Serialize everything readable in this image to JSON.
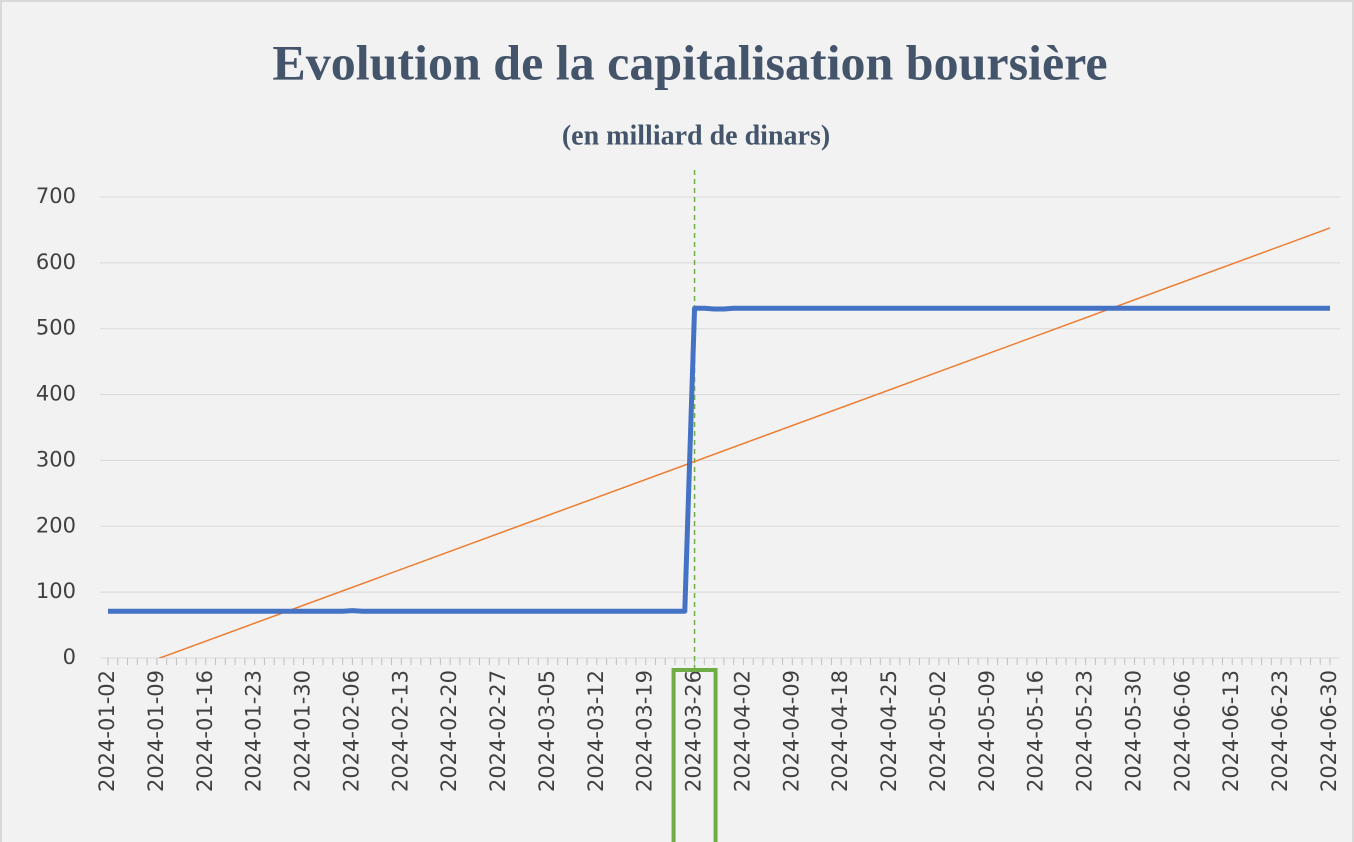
{
  "chart_data": {
    "type": "line",
    "title": "Evolution de la capitalisation boursière",
    "subtitle": "(en milliard de dinars)",
    "categories": [
      "2024-01-02",
      null,
      null,
      null,
      null,
      "2024-01-09",
      null,
      null,
      null,
      null,
      "2024-01-16",
      null,
      null,
      null,
      null,
      "2024-01-23",
      null,
      null,
      null,
      null,
      "2024-01-30",
      null,
      null,
      null,
      null,
      "2024-02-06",
      null,
      null,
      null,
      null,
      "2024-02-13",
      null,
      null,
      null,
      null,
      "2024-02-20",
      null,
      null,
      null,
      null,
      "2024-02-27",
      null,
      null,
      null,
      null,
      "2024-03-05",
      null,
      null,
      null,
      null,
      "2024-03-12",
      null,
      null,
      null,
      null,
      "2024-03-19",
      null,
      null,
      null,
      null,
      "2024-03-26",
      null,
      null,
      null,
      null,
      "2024-04-02",
      null,
      null,
      null,
      null,
      "2024-04-09",
      null,
      null,
      null,
      null,
      "2024-04-18",
      null,
      null,
      null,
      null,
      "2024-04-25",
      null,
      null,
      null,
      null,
      "2024-05-02",
      null,
      null,
      null,
      null,
      "2024-05-09",
      null,
      null,
      null,
      null,
      "2024-05-16",
      null,
      null,
      null,
      null,
      "2024-05-23",
      null,
      null,
      null,
      null,
      "2024-05-30",
      null,
      null,
      null,
      null,
      "2024-06-06",
      null,
      null,
      null,
      null,
      "2024-06-13",
      null,
      null,
      null,
      null,
      "2024-06-23",
      null,
      null,
      null,
      null,
      "2024-06-30"
    ],
    "series": [
      {
        "color": "#4472c4",
        "values": [
          71,
          71,
          71,
          71,
          71,
          71,
          71,
          71,
          71,
          71,
          71,
          71,
          71,
          71,
          71,
          71,
          71,
          71,
          71,
          71,
          71,
          71,
          71,
          71,
          71,
          72,
          71,
          71,
          71,
          71,
          71,
          71,
          71,
          71,
          71,
          71,
          71,
          71,
          71,
          71,
          71,
          71,
          71,
          71,
          71,
          71,
          71,
          71,
          71,
          71,
          71,
          71,
          71,
          71,
          71,
          71,
          71,
          71,
          71,
          71,
          531,
          531,
          530,
          530,
          531,
          531,
          531,
          531,
          531,
          531,
          531,
          531,
          531,
          531,
          531,
          531,
          531,
          531,
          531,
          531,
          531,
          531,
          531,
          531,
          531,
          531,
          531,
          531,
          531,
          531,
          531,
          531,
          531,
          531,
          531,
          531,
          531,
          531,
          531,
          531,
          531,
          531,
          531,
          531,
          531,
          531,
          531,
          531,
          531,
          531,
          531,
          531,
          531,
          531,
          531,
          531,
          531,
          531,
          531,
          531,
          531,
          531,
          531,
          531,
          531,
          531
        ]
      }
    ],
    "trendline": {
      "color": "#ed7d31",
      "values": [
        -29,
        653
      ]
    },
    "highlight": {
      "category_index": 60,
      "color": "#70ad47"
    },
    "ylim": [
      0,
      700
    ],
    "yticks": [
      0,
      100,
      200,
      300,
      400,
      500,
      600,
      700
    ],
    "grid": true
  }
}
